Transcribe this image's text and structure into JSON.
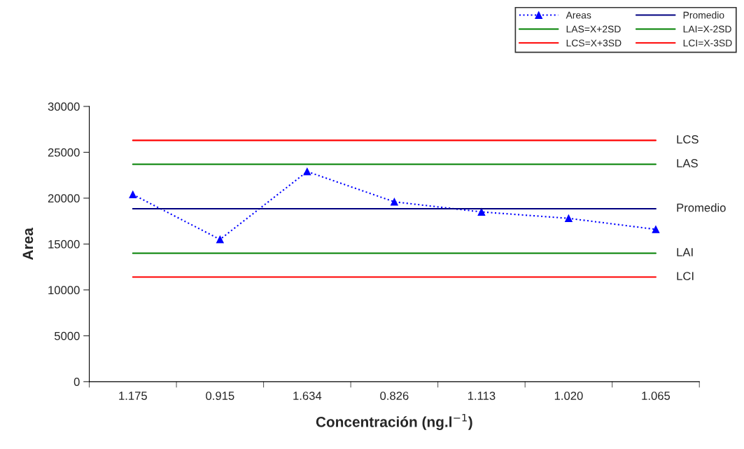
{
  "chart_data": {
    "type": "line",
    "xlabel": "Concentración (ng.l$^{−1}$)",
    "ylabel": "Area",
    "categories": [
      "1.175",
      "0.915",
      "1.634",
      "0.826",
      "1.113",
      "1.020",
      "1.065"
    ],
    "series": [
      {
        "name": "Areas",
        "color": "#0000ff",
        "marker": "triangle",
        "line_style": "dotted",
        "values": [
          20400,
          15500,
          22900,
          19600,
          18500,
          17800,
          16600
        ]
      },
      {
        "name": "Promedio",
        "color": "#000080",
        "marker": "none",
        "line_style": "solid",
        "values": [
          18850,
          18850,
          18850,
          18850,
          18850,
          18850,
          18850
        ]
      },
      {
        "name": "LAS=X+2SD",
        "color": "#008000",
        "marker": "none",
        "line_style": "solid",
        "values": [
          23700,
          23700,
          23700,
          23700,
          23700,
          23700,
          23700
        ]
      },
      {
        "name": "LAI=X-2SD",
        "color": "#008000",
        "marker": "none",
        "line_style": "solid",
        "values": [
          14000,
          14000,
          14000,
          14000,
          14000,
          14000,
          14000
        ]
      },
      {
        "name": "LCS=X+3SD",
        "color": "#ff0000",
        "marker": "none",
        "line_style": "solid",
        "values": [
          26300,
          26300,
          26300,
          26300,
          26300,
          26300,
          26300
        ]
      },
      {
        "name": "LCI=X-3SD",
        "color": "#ff0000",
        "marker": "none",
        "line_style": "solid",
        "values": [
          11400,
          11400,
          11400,
          11400,
          11400,
          11400,
          11400
        ]
      }
    ],
    "annotations": [
      {
        "text": "LCS",
        "x": "1.065",
        "y": 26300
      },
      {
        "text": "LAS",
        "x": "1.065",
        "y": 23700
      },
      {
        "text": "Promedio",
        "x": "1.065",
        "y": 18850
      },
      {
        "text": "LAI",
        "x": "1.065",
        "y": 14000
      },
      {
        "text": "LCI",
        "x": "1.065",
        "y": 11400
      }
    ],
    "ylim": [
      0,
      30000
    ],
    "yticks": [
      0,
      5000,
      10000,
      15000,
      20000,
      25000,
      30000
    ],
    "grid": false,
    "legend": "top right"
  }
}
